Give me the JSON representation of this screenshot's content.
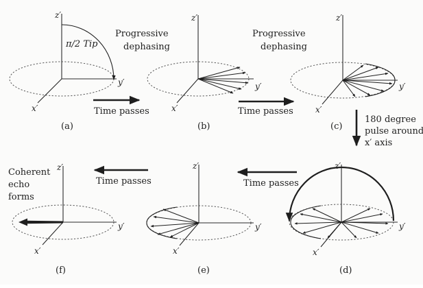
{
  "axis_labels": {
    "z": "z′",
    "y": "y′",
    "x": "x′"
  },
  "panels": [
    {
      "id": "a",
      "caption": "(a)",
      "tip_label": "π/2 Tip"
    },
    {
      "id": "b",
      "caption": "(b)"
    },
    {
      "id": "c",
      "caption": "(c)"
    },
    {
      "id": "d",
      "caption": "(d)"
    },
    {
      "id": "e",
      "caption": "(e)"
    },
    {
      "id": "f",
      "caption": "(f)"
    }
  ],
  "transitions": {
    "ab": {
      "line1": "Progressive",
      "line2": "dephasing",
      "arrow_label": "Time passes"
    },
    "bc": {
      "line1": "Progressive",
      "line2": "dephasing",
      "arrow_label": "Time passes"
    },
    "cd": {
      "line1": "180 degree",
      "line2": "pulse around",
      "line3": "x′ axis"
    },
    "de": {
      "arrow_label": "Time passes"
    },
    "ef": {
      "arrow_label": "Time passes"
    }
  },
  "result_label": {
    "line1": "Coherent",
    "line2": "echo",
    "line3": "forms"
  },
  "colors": {
    "ink": "#1e1e1e",
    "dashed": "#555555"
  }
}
